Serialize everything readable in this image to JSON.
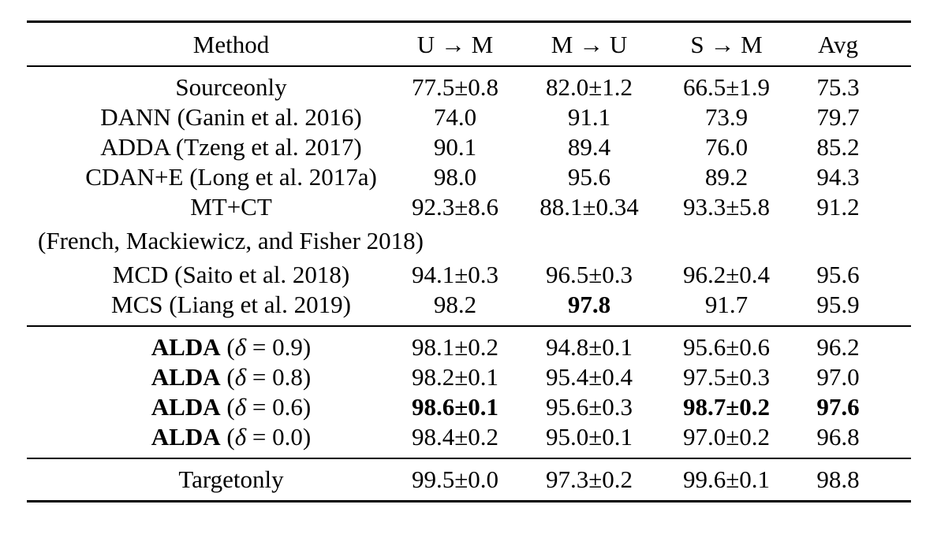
{
  "page": {
    "background_color": "#ffffff",
    "text_color": "#000000"
  },
  "table": {
    "headers": [
      "Method",
      "U → M",
      "M → U",
      "S → M",
      "Avg"
    ],
    "sections": [
      {
        "rows": [
          {
            "method": "Sourceonly",
            "u_m": "77.5±0.8",
            "m_u": "82.0±1.2",
            "s_m": "66.5±1.9",
            "avg": "75.3"
          },
          {
            "method": "DANN (Ganin et al. 2016)",
            "u_m": "74.0",
            "m_u": "91.1",
            "s_m": "73.9",
            "avg": "79.7"
          },
          {
            "method": "ADDA (Tzeng et al. 2017)",
            "u_m": "90.1",
            "m_u": "89.4",
            "s_m": "76.0",
            "avg": "85.2"
          },
          {
            "method": "CDAN+E (Long et al. 2017a)",
            "u_m": "98.0",
            "m_u": "95.6",
            "s_m": "89.2",
            "avg": "94.3"
          },
          {
            "method": "MT+CT",
            "u_m": "92.3±8.6",
            "m_u": "88.1±0.34",
            "s_m": "93.3±5.8",
            "avg": "91.2"
          },
          {
            "note": "(French, Mackiewicz, and Fisher 2018)"
          },
          {
            "method": "MCD (Saito et al. 2018)",
            "u_m": "94.1±0.3",
            "m_u": "96.5±0.3",
            "s_m": "96.2±0.4",
            "avg": "95.6"
          },
          {
            "method": "MCS (Liang et al. 2019)",
            "u_m": "98.2",
            "m_u": "97.8",
            "s_m": "91.7",
            "avg": "95.9"
          }
        ]
      },
      {
        "rows": [
          {
            "method_bold": "ALDA",
            "method_open": " (",
            "delta": "δ",
            "method_close": " = 0.9)",
            "u_m": "98.1±0.2",
            "m_u": "94.8±0.1",
            "s_m": "95.6±0.6",
            "avg": "96.2"
          },
          {
            "method_bold": "ALDA",
            "method_open": " (",
            "delta": "δ",
            "method_close": " = 0.8)",
            "u_m": "98.2±0.1",
            "m_u": "95.4±0.4",
            "s_m": "97.5±0.3",
            "avg": "97.0"
          },
          {
            "method_bold": "ALDA",
            "method_open": " (",
            "delta": "δ",
            "method_close": " = 0.6)",
            "u_m": "98.6±0.1",
            "m_u": "95.6±0.3",
            "s_m": "98.7±0.2",
            "avg": "97.6"
          },
          {
            "method_bold": "ALDA",
            "method_open": " (",
            "delta": "δ",
            "method_close": " = 0.0)",
            "u_m": "98.4±0.2",
            "m_u": "95.0±0.1",
            "s_m": "97.0±0.2",
            "avg": "96.8"
          }
        ]
      },
      {
        "rows": [
          {
            "method": "Targetonly",
            "u_m": "99.5±0.0",
            "m_u": "97.3±0.2",
            "s_m": "99.6±0.1",
            "avg": "98.8"
          }
        ]
      }
    ]
  }
}
